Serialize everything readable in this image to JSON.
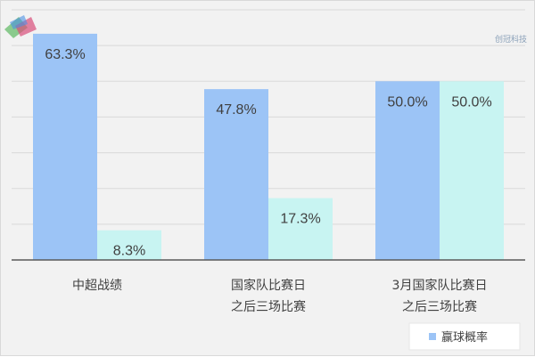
{
  "chart_data": {
    "type": "bar",
    "categories": [
      [
        "中超战绩"
      ],
      [
        "国家队比赛日",
        "之后三场比赛"
      ],
      [
        "3月国家队比赛日",
        "之后三场比赛"
      ]
    ],
    "series": [
      {
        "name": "赢球概率",
        "values": [
          63.3,
          47.8,
          50.0
        ],
        "labels": [
          "63.3%",
          "47.8%",
          "50.0%"
        ],
        "color": "#9cc4f6"
      },
      {
        "values": [
          8.3,
          17.3,
          50.0
        ],
        "labels": [
          "8.3%",
          "17.3%",
          "50.0%"
        ],
        "color": "#c8f4f2"
      }
    ],
    "ylim": [
      0,
      70
    ],
    "grid": true,
    "legend_position": "bottom-right"
  },
  "colors": {
    "background": "#f2f2f2",
    "grid": "#d9d9d9",
    "axis": "#595959",
    "label_text": "#404040"
  },
  "logo": {
    "icon": "chamion-logo-icon",
    "text": "创冠科技"
  }
}
